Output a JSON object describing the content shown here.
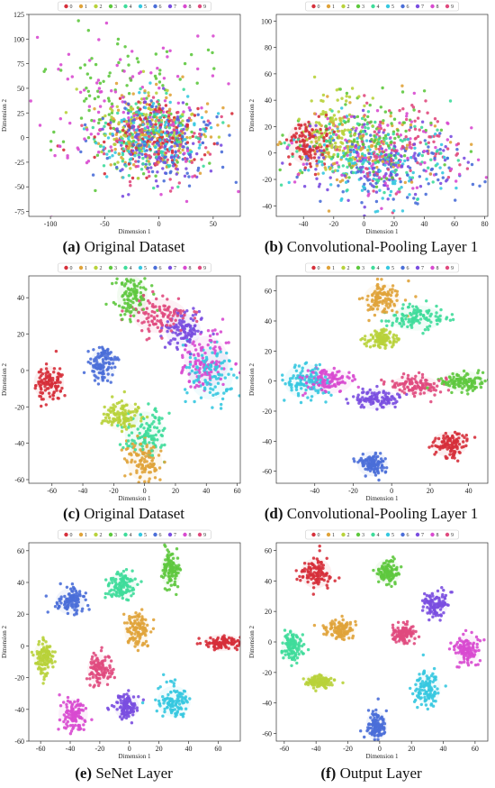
{
  "legend_labels": [
    "0",
    "1",
    "2",
    "3",
    "4",
    "5",
    "6",
    "7",
    "8",
    "9"
  ],
  "class_colors": [
    "#d62f3a",
    "#e0a33a",
    "#b8d23a",
    "#5ec83e",
    "#3edc9a",
    "#36c8e0",
    "#4a6ed8",
    "#7a4ee0",
    "#d84ad0",
    "#e04a7e"
  ],
  "captions": [
    {
      "letter": "(a)",
      "text": " Original Dataset"
    },
    {
      "letter": "(b)",
      "text": " Convolutional-Pooling Layer 1"
    },
    {
      "letter": "(c)",
      "text": " Original Dataset"
    },
    {
      "letter": "(d)",
      "text": " Convolutional-Pooling Layer 1"
    },
    {
      "letter": "(e)",
      "text": " SeNet Layer"
    },
    {
      "letter": "(f)",
      "text": " Output Layer"
    }
  ],
  "chart_data": [
    {
      "type": "scatter",
      "panel": "a",
      "xlabel": "Dimension 1",
      "ylabel": "Dimension 2",
      "xlim": [
        -120,
        75
      ],
      "ylim": [
        -80,
        125
      ],
      "xticks": [
        -100,
        -50,
        0,
        50
      ],
      "yticks": [
        -75,
        -50,
        -25,
        0,
        25,
        50,
        75,
        100,
        125
      ],
      "legend": "top",
      "grid": false,
      "series": [
        {
          "name": "0",
          "center": [
            -10,
            0
          ],
          "spread": [
            25,
            20
          ]
        },
        {
          "name": "1",
          "center": [
            -5,
            5
          ],
          "spread": [
            25,
            20
          ]
        },
        {
          "name": "2",
          "center": [
            -12,
            8
          ],
          "spread": [
            25,
            20
          ]
        },
        {
          "name": "3",
          "center": [
            -25,
            35
          ],
          "spread": [
            40,
            35
          ]
        },
        {
          "name": "4",
          "center": [
            -5,
            0
          ],
          "spread": [
            25,
            20
          ]
        },
        {
          "name": "5",
          "center": [
            0,
            0
          ],
          "spread": [
            25,
            20
          ]
        },
        {
          "name": "6",
          "center": [
            5,
            -5
          ],
          "spread": [
            25,
            20
          ]
        },
        {
          "name": "7",
          "center": [
            0,
            0
          ],
          "spread": [
            25,
            20
          ]
        },
        {
          "name": "8",
          "center": [
            -35,
            30
          ],
          "spread": [
            45,
            40
          ]
        },
        {
          "name": "9",
          "center": [
            0,
            -5
          ],
          "spread": [
            25,
            20
          ]
        }
      ]
    },
    {
      "type": "scatter",
      "panel": "b",
      "xlabel": "Dimension 1",
      "ylabel": "Dimension 2",
      "xlim": [
        -58,
        82
      ],
      "ylim": [
        -48,
        105
      ],
      "xticks": [
        -40,
        -20,
        0,
        20,
        40,
        60,
        80
      ],
      "yticks": [
        -40,
        -20,
        0,
        20,
        40,
        60,
        80,
        100
      ],
      "legend": "top",
      "grid": false,
      "series": [
        {
          "name": "0",
          "center": [
            -38,
            8
          ],
          "spread": [
            7,
            9
          ]
        },
        {
          "name": "1",
          "center": [
            -5,
            2
          ],
          "spread": [
            25,
            15
          ]
        },
        {
          "name": "2",
          "center": [
            -20,
            15
          ],
          "spread": [
            10,
            15
          ]
        },
        {
          "name": "3",
          "center": [
            0,
            10
          ],
          "spread": [
            30,
            15
          ]
        },
        {
          "name": "4",
          "center": [
            5,
            0
          ],
          "spread": [
            25,
            15
          ]
        },
        {
          "name": "5",
          "center": [
            10,
            -10
          ],
          "spread": [
            25,
            15
          ]
        },
        {
          "name": "6",
          "center": [
            15,
            -10
          ],
          "spread": [
            25,
            15
          ]
        },
        {
          "name": "7",
          "center": [
            5,
            -5
          ],
          "spread": [
            25,
            15
          ]
        },
        {
          "name": "8",
          "center": [
            20,
            0
          ],
          "spread": [
            25,
            15
          ]
        },
        {
          "name": "9",
          "center": [
            25,
            5
          ],
          "spread": [
            20,
            15
          ]
        }
      ]
    },
    {
      "type": "scatter",
      "panel": "c",
      "xlabel": "Dimension 1",
      "ylabel": "Dimension 2",
      "xlim": [
        -75,
        62
      ],
      "ylim": [
        -62,
        52
      ],
      "xticks": [
        -60,
        -40,
        -20,
        0,
        20,
        40,
        60
      ],
      "yticks": [
        -60,
        -40,
        -20,
        0,
        20,
        40
      ],
      "legend": "top",
      "grid": false,
      "series": [
        {
          "name": "0",
          "center": [
            -62,
            -7
          ],
          "spread": [
            5,
            5
          ]
        },
        {
          "name": "1",
          "center": [
            0,
            -50
          ],
          "spread": [
            6,
            6
          ]
        },
        {
          "name": "2",
          "center": [
            -15,
            -25
          ],
          "spread": [
            6,
            4
          ]
        },
        {
          "name": "3",
          "center": [
            -8,
            41
          ],
          "spread": [
            5,
            6
          ]
        },
        {
          "name": "4",
          "center": [
            0,
            -35
          ],
          "spread": [
            7,
            7
          ]
        },
        {
          "name": "5",
          "center": [
            43,
            -2
          ],
          "spread": [
            8,
            8
          ]
        },
        {
          "name": "6",
          "center": [
            -27,
            3
          ],
          "spread": [
            4,
            5
          ]
        },
        {
          "name": "7",
          "center": [
            25,
            22
          ],
          "spread": [
            6,
            5
          ]
        },
        {
          "name": "8",
          "center": [
            40,
            5
          ],
          "spread": [
            8,
            8
          ]
        },
        {
          "name": "9",
          "center": [
            10,
            30
          ],
          "spread": [
            10,
            5
          ]
        }
      ]
    },
    {
      "type": "scatter",
      "panel": "d",
      "xlabel": "Dimension 1",
      "ylabel": "Dimension 2",
      "xlim": [
        -60,
        50
      ],
      "ylim": [
        -68,
        70
      ],
      "xticks": [
        -40,
        -20,
        0,
        20,
        40
      ],
      "yticks": [
        -60,
        -40,
        -20,
        0,
        20,
        40,
        60
      ],
      "legend": "top",
      "grid": false,
      "series": [
        {
          "name": "0",
          "center": [
            30,
            -42
          ],
          "spread": [
            5,
            4
          ]
        },
        {
          "name": "1",
          "center": [
            -5,
            55
          ],
          "spread": [
            5,
            5
          ]
        },
        {
          "name": "2",
          "center": [
            -5,
            28
          ],
          "spread": [
            4,
            3
          ]
        },
        {
          "name": "3",
          "center": [
            37,
            0
          ],
          "spread": [
            6,
            3
          ]
        },
        {
          "name": "4",
          "center": [
            13,
            42
          ],
          "spread": [
            8,
            4
          ]
        },
        {
          "name": "5",
          "center": [
            -45,
            0
          ],
          "spread": [
            6,
            6
          ]
        },
        {
          "name": "6",
          "center": [
            -10,
            -55
          ],
          "spread": [
            4,
            4
          ]
        },
        {
          "name": "7",
          "center": [
            -8,
            -12
          ],
          "spread": [
            6,
            3
          ]
        },
        {
          "name": "8",
          "center": [
            -33,
            0
          ],
          "spread": [
            7,
            4
          ]
        },
        {
          "name": "9",
          "center": [
            12,
            -3
          ],
          "spread": [
            7,
            3
          ]
        }
      ]
    },
    {
      "type": "scatter",
      "panel": "e",
      "xlabel": "Dimension 1",
      "ylabel": "Dimension 2",
      "xlim": [
        -68,
        75
      ],
      "ylim": [
        -60,
        65
      ],
      "xticks": [
        -60,
        -40,
        -20,
        0,
        20,
        40,
        60
      ],
      "yticks": [
        -60,
        -40,
        -20,
        0,
        20,
        40,
        60
      ],
      "legend": "top",
      "grid": false,
      "series": [
        {
          "name": "0",
          "center": [
            63,
            2
          ],
          "spread": [
            7,
            2
          ]
        },
        {
          "name": "1",
          "center": [
            5,
            10
          ],
          "spread": [
            4,
            6
          ]
        },
        {
          "name": "2",
          "center": [
            -58,
            -7
          ],
          "spread": [
            3,
            5
          ]
        },
        {
          "name": "3",
          "center": [
            28,
            48
          ],
          "spread": [
            3,
            6
          ]
        },
        {
          "name": "4",
          "center": [
            -5,
            38
          ],
          "spread": [
            5,
            4
          ]
        },
        {
          "name": "5",
          "center": [
            30,
            -35
          ],
          "spread": [
            6,
            5
          ]
        },
        {
          "name": "6",
          "center": [
            -40,
            28
          ],
          "spread": [
            5,
            4
          ]
        },
        {
          "name": "7",
          "center": [
            -2,
            -38
          ],
          "spread": [
            4,
            4
          ]
        },
        {
          "name": "8",
          "center": [
            -38,
            -43
          ],
          "spread": [
            5,
            5
          ]
        },
        {
          "name": "9",
          "center": [
            -20,
            -15
          ],
          "spread": [
            4,
            5
          ]
        }
      ]
    },
    {
      "type": "scatter",
      "panel": "f",
      "xlabel": "Dimension 1",
      "ylabel": "Dimension 2",
      "xlim": [
        -65,
        68
      ],
      "ylim": [
        -65,
        65
      ],
      "xticks": [
        -60,
        -40,
        -20,
        0,
        20,
        40,
        60
      ],
      "yticks": [
        -60,
        -40,
        -20,
        0,
        20,
        40,
        60
      ],
      "legend": "top",
      "grid": false,
      "series": [
        {
          "name": "0",
          "center": [
            -40,
            45
          ],
          "spread": [
            5,
            5
          ]
        },
        {
          "name": "1",
          "center": [
            -25,
            8
          ],
          "spread": [
            5,
            3
          ]
        },
        {
          "name": "2",
          "center": [
            -38,
            -26
          ],
          "spread": [
            5,
            2
          ]
        },
        {
          "name": "3",
          "center": [
            5,
            46
          ],
          "spread": [
            4,
            4
          ]
        },
        {
          "name": "4",
          "center": [
            -55,
            -3
          ],
          "spread": [
            3,
            5
          ]
        },
        {
          "name": "5",
          "center": [
            30,
            -30
          ],
          "spread": [
            4,
            6
          ]
        },
        {
          "name": "6",
          "center": [
            -2,
            -55
          ],
          "spread": [
            3,
            5
          ]
        },
        {
          "name": "7",
          "center": [
            35,
            25
          ],
          "spread": [
            4,
            4
          ]
        },
        {
          "name": "8",
          "center": [
            55,
            -5
          ],
          "spread": [
            4,
            5
          ]
        },
        {
          "name": "9",
          "center": [
            15,
            5
          ],
          "spread": [
            4,
            3
          ]
        }
      ]
    }
  ]
}
